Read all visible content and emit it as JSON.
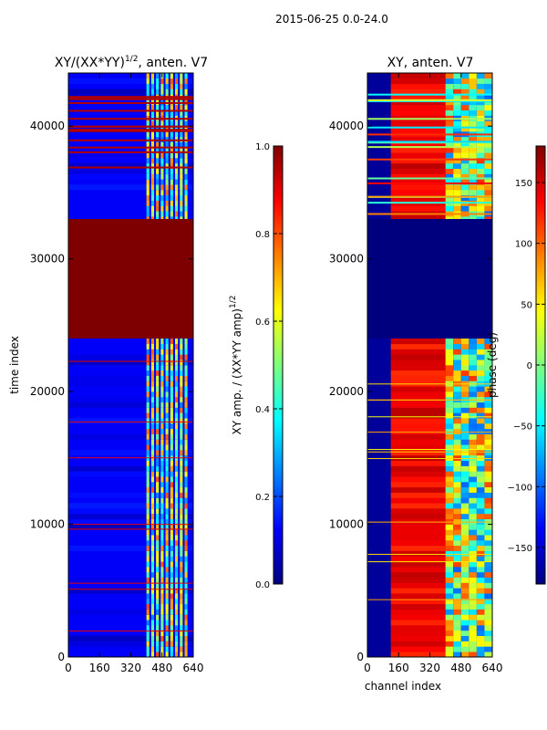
{
  "figure": {
    "suptitle": "2015-06-25 0.0-24.0"
  },
  "colors": {
    "jet_stops": [
      "#00007f",
      "#0000ff",
      "#007fff",
      "#00ffff",
      "#7fff7f",
      "#ffff00",
      "#ff7f00",
      "#ff0000",
      "#7f0000"
    ]
  },
  "chart_data": [
    {
      "type": "heatmap",
      "title": "XY/(XX*YY)^{1/2}, anten. V7",
      "title_main": "XY/(XX*YY)",
      "title_sup": "1/2",
      "title_rest": ", anten. V7",
      "xlabel": "",
      "ylabel": "time index",
      "xlim": [
        0,
        640
      ],
      "ylim": [
        0,
        44000
      ],
      "xticks": [
        "0",
        "160",
        "320",
        "480",
        "640"
      ],
      "yticks": [
        "0",
        "10000",
        "20000",
        "30000",
        "40000"
      ],
      "xtick_values": [
        0,
        160,
        320,
        480,
        640
      ],
      "ytick_values": [
        0,
        10000,
        20000,
        30000,
        40000
      ],
      "colorbar": {
        "label": "XY amp. / (XX*YY amp)^{1/2}",
        "label_main": "XY amp. / (XX*YY amp)",
        "label_sup": "1/2",
        "range": [
          0.0,
          1.0
        ],
        "ticks": [
          "0.0",
          "0.2",
          "0.4",
          "0.6",
          "0.8",
          "1.0"
        ],
        "tick_values": [
          0.0,
          0.2,
          0.4,
          0.6,
          0.8,
          1.0
        ]
      },
      "regions": [
        {
          "desc": "saturated band",
          "y0": 24000,
          "y1": 33000,
          "value": 1.0
        },
        {
          "desc": "background",
          "value": 0.12
        },
        {
          "desc": "channel strips",
          "x0": 400,
          "x1": 620,
          "value_range": [
            0.3,
            0.9
          ]
        }
      ]
    },
    {
      "type": "heatmap",
      "title": "XY, anten. V7",
      "xlabel": "channel index",
      "ylabel": "",
      "xlim": [
        0,
        640
      ],
      "ylim": [
        0,
        44000
      ],
      "xticks": [
        "0",
        "160",
        "320",
        "480",
        "640"
      ],
      "yticks": [
        "0",
        "10000",
        "20000",
        "30000",
        "40000"
      ],
      "xtick_values": [
        0,
        160,
        320,
        480,
        640
      ],
      "ytick_values": [
        0,
        10000,
        20000,
        30000,
        40000
      ],
      "colorbar": {
        "label": "phase (deg)",
        "range": [
          -180,
          180
        ],
        "ticks": [
          "150",
          "100",
          "50",
          "0",
          "−50",
          "−100",
          "−150"
        ],
        "tick_values": [
          150,
          100,
          50,
          0,
          -50,
          -100,
          -150
        ]
      },
      "regions": [
        {
          "desc": "flat band",
          "y0": 24000,
          "y1": 33000,
          "value": -180
        },
        {
          "desc": "main phase",
          "x0": 120,
          "x1": 400,
          "value": 160
        },
        {
          "desc": "mixed high channels",
          "x0": 400,
          "x1": 640,
          "value_range": [
            -100,
            120
          ]
        }
      ]
    }
  ]
}
